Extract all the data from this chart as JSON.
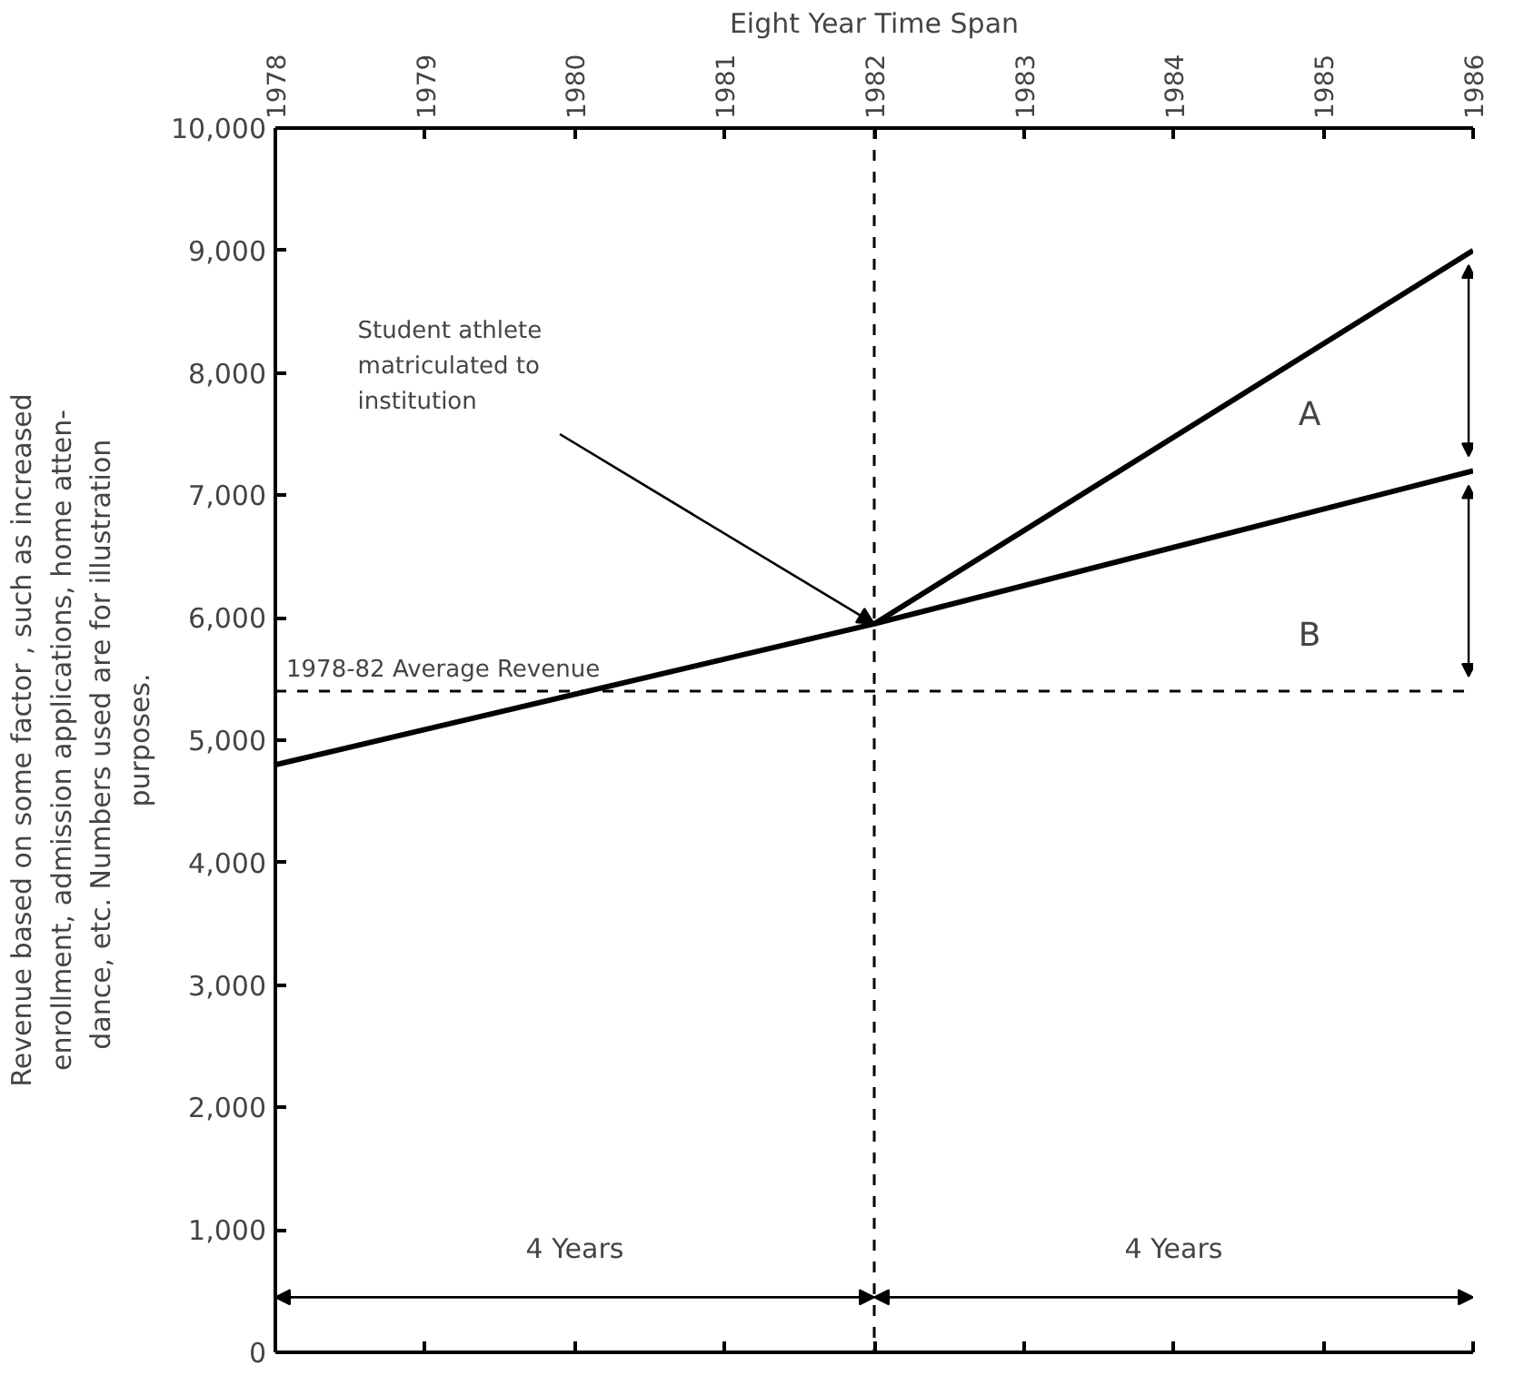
{
  "chart_data": {
    "type": "line",
    "xlabel": "Eight Year Time Span",
    "ylabel": "Revenue based on some factor , such as increased\nenrollment, admission applications, home atten-\ndance, etc.  Numbers used are for illustration\npurposes.",
    "xlim": [
      1978,
      1986
    ],
    "xticks": [
      1978,
      1979,
      1980,
      1981,
      1982,
      1983,
      1984,
      1985,
      1986
    ],
    "ylim": [
      0,
      10000
    ],
    "yticks": [
      0,
      {
        "value": 1000,
        "label": "1,000"
      },
      {
        "value": 2000,
        "label": "2,000"
      },
      {
        "value": 3000,
        "label": "3,000"
      },
      {
        "value": 4000,
        "label": "4,000"
      },
      {
        "value": 5000,
        "label": "5,000"
      },
      {
        "value": 6000,
        "label": "6,000"
      },
      {
        "value": 7000,
        "label": "7,000"
      },
      {
        "value": 8000,
        "label": "8,000"
      },
      {
        "value": 9000,
        "label": "9,000"
      },
      {
        "value": 10000,
        "label": "10,000"
      }
    ],
    "series": [
      {
        "color": "#000000",
        "x": [
          1978,
          1982,
          1986
        ],
        "values": [
          4800,
          5950,
          7200
        ]
      },
      {
        "color": "#000000",
        "x": [
          1982,
          1986
        ],
        "values": [
          5950,
          9000
        ]
      }
    ],
    "ref_lines": [
      {
        "axis": "y",
        "value": 5400,
        "label": "1978-82 Average Revenue",
        "line_style": "dashed",
        "color": "#000000"
      },
      {
        "axis": "x",
        "value": 1982,
        "line_style": "dashed",
        "color": "#000000"
      }
    ],
    "annotations": [
      {
        "text": "Student athlete\nmatriculated to\ninstitution",
        "x": 1982,
        "y": 5950
      },
      "A",
      "B",
      "4 Years",
      "4 Years"
    ],
    "grid": false,
    "marker": "none",
    "line_style": "solid"
  }
}
